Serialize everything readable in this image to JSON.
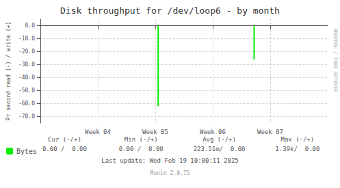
{
  "chart_data": {
    "type": "bar",
    "title": "Disk throughput for /dev/loop6 - by month",
    "ylabel": "Pr second read (-) / write (+)",
    "x": [
      2.05,
      3.72
    ],
    "series": [
      {
        "name": "Bytes",
        "color": "#00EE00",
        "values": [
          -62.0,
          -26.0
        ]
      }
    ],
    "xlim": [
      0.0,
      5.0
    ],
    "xticks": [
      {
        "value": 1,
        "label": "Week 04"
      },
      {
        "value": 2,
        "label": "Week 05"
      },
      {
        "value": 3,
        "label": "Week 06"
      },
      {
        "value": 4,
        "label": "Week 07"
      }
    ],
    "ylim": [
      -75,
      5
    ],
    "yticks": [
      {
        "value": 0.0,
        "label": "0.0"
      },
      {
        "value": -10.0,
        "label": "-10.0"
      },
      {
        "value": -20.0,
        "label": "-20.0"
      },
      {
        "value": -30.0,
        "label": "-30.0"
      },
      {
        "value": -40.0,
        "label": "-40.0"
      },
      {
        "value": -50.0,
        "label": "-50.0"
      },
      {
        "value": -60.0,
        "label": "-60.0"
      },
      {
        "value": -70.0,
        "label": "-70.0"
      }
    ],
    "grid": true,
    "legend": "bottom",
    "annotations": [
      "Cur (-/+)",
      "Min (-/+)",
      "Avg (-/+)",
      "Max (-/+)",
      "0.00 /  0.00",
      "0.00 /  0.00",
      "223.51m/  0.00",
      "1.39k/  0.00",
      "Last update: Wed Feb 19 10:00:11 2025",
      "Munin 2.0.75",
      "RRDTOOL / TOBI OETIKER"
    ]
  }
}
